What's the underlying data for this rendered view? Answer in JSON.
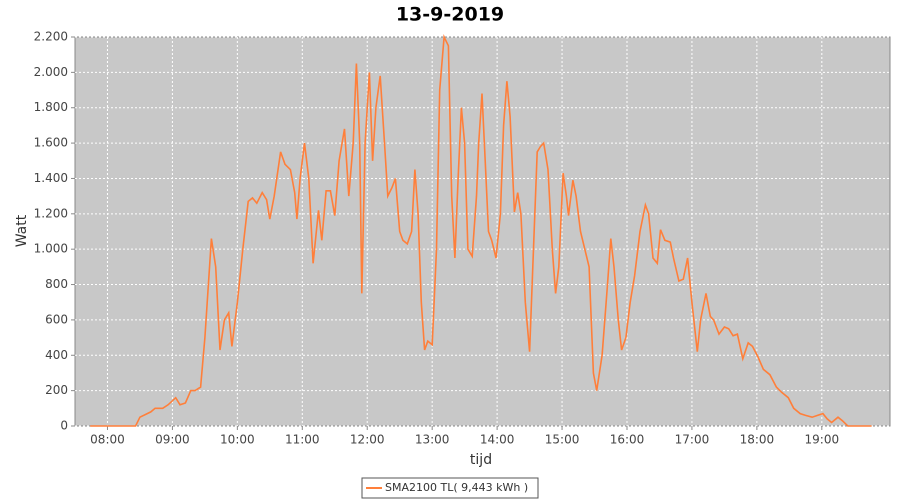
{
  "chart_data": {
    "type": "line",
    "title": "13-9-2019",
    "x_label": "tijd",
    "y_label": "Watt",
    "x": [
      464,
      506,
      510,
      520,
      524,
      531,
      536,
      543,
      547,
      552,
      557,
      561,
      566,
      570,
      576,
      580,
      584,
      588,
      592,
      595,
      600,
      605,
      610,
      614,
      618,
      623,
      627,
      630,
      634,
      640,
      644,
      649,
      653,
      655,
      658,
      662,
      666,
      670,
      675,
      678,
      682,
      686,
      690,
      694,
      699,
      703,
      707,
      710,
      713,
      715,
      718,
      722,
      725,
      728,
      732,
      736,
      739,
      743,
      746,
      750,
      753,
      757,
      761,
      764,
      767,
      770,
      773,
      776,
      780,
      784,
      787,
      791,
      795,
      798,
      801,
      804,
      807,
      810,
      813,
      817,
      821,
      823,
      826,
      829,
      832,
      835,
      839,
      843,
      846,
      849,
      852,
      856,
      859,
      862,
      866,
      870,
      873,
      877,
      880,
      883,
      887,
      891,
      894,
      897,
      901,
      904,
      906,
      910,
      913,
      917,
      921,
      925,
      929,
      932,
      937,
      942,
      945,
      948,
      952,
      955,
      959,
      963,
      967,
      972,
      977,
      980,
      984,
      988,
      991,
      995,
      1000,
      1003,
      1008,
      1012,
      1016,
      1020,
      1025,
      1028,
      1033,
      1037,
      1040,
      1045,
      1050,
      1054,
      1058,
      1062,
      1067,
      1072,
      1076,
      1081,
      1086,
      1092,
      1098,
      1103,
      1109,
      1114,
      1120,
      1125,
      1131,
      1136,
      1141,
      1145,
      1149,
      1155,
      1159,
      1164,
      1186
    ],
    "series": [
      {
        "name": "SMA2100 TL( 9,443 kWh )",
        "color": "#ff7f3a",
        "values": [
          0,
          0,
          50,
          80,
          100,
          100,
          120,
          160,
          120,
          130,
          200,
          200,
          220,
          500,
          1060,
          900,
          430,
          600,
          640,
          450,
          700,
          1000,
          1270,
          1290,
          1260,
          1320,
          1280,
          1170,
          1300,
          1550,
          1480,
          1450,
          1320,
          1170,
          1400,
          1600,
          1400,
          920,
          1220,
          1050,
          1330,
          1330,
          1190,
          1500,
          1680,
          1300,
          1600,
          2050,
          1600,
          750,
          1600,
          2000,
          1500,
          1800,
          1980,
          1600,
          1300,
          1350,
          1400,
          1100,
          1050,
          1030,
          1100,
          1450,
          1200,
          700,
          430,
          480,
          460,
          1000,
          1900,
          2200,
          2150,
          1300,
          950,
          1400,
          1800,
          1600,
          1000,
          960,
          1300,
          1600,
          1880,
          1500,
          1100,
          1050,
          950,
          1200,
          1700,
          1950,
          1750,
          1210,
          1320,
          1200,
          700,
          420,
          900,
          1550,
          1580,
          1600,
          1450,
          1000,
          750,
          900,
          1430,
          1300,
          1190,
          1390,
          1300,
          1100,
          1000,
          900,
          300,
          200,
          400,
          800,
          1060,
          900,
          600,
          430,
          500,
          700,
          850,
          1100,
          1250,
          1200,
          950,
          920,
          1110,
          1050,
          1040,
          950,
          820,
          830,
          950,
          700,
          420,
          600,
          750,
          620,
          600,
          520,
          560,
          550,
          510,
          520,
          380,
          470,
          450,
          390,
          320,
          290,
          220,
          190,
          160,
          100,
          70,
          60,
          50,
          60,
          70,
          40,
          20,
          50,
          30,
          0,
          0
        ]
      }
    ],
    "xlim": [
      450,
      1203
    ],
    "xticks": [
      {
        "value": 480,
        "label": "08:00"
      },
      {
        "value": 540,
        "label": "09:00"
      },
      {
        "value": 600,
        "label": "10:00"
      },
      {
        "value": 660,
        "label": "11:00"
      },
      {
        "value": 720,
        "label": "12:00"
      },
      {
        "value": 780,
        "label": "13:00"
      },
      {
        "value": 840,
        "label": "14:00"
      },
      {
        "value": 900,
        "label": "15:00"
      },
      {
        "value": 960,
        "label": "16:00"
      },
      {
        "value": 1020,
        "label": "17:00"
      },
      {
        "value": 1080,
        "label": "18:00"
      },
      {
        "value": 1140,
        "label": "19:00"
      }
    ],
    "ylim": [
      0,
      2200
    ],
    "yticks": [
      0,
      200,
      400,
      600,
      800,
      {
        "value": 1000,
        "label": "1.000"
      },
      {
        "value": 1200,
        "label": "1.200"
      },
      {
        "value": 1400,
        "label": "1.400"
      },
      {
        "value": 1600,
        "label": "1.600"
      },
      {
        "value": 1800,
        "label": "1.800"
      },
      {
        "value": 2000,
        "label": "2.000"
      },
      {
        "value": 2200,
        "label": "2.200"
      }
    ],
    "grid": true
  }
}
